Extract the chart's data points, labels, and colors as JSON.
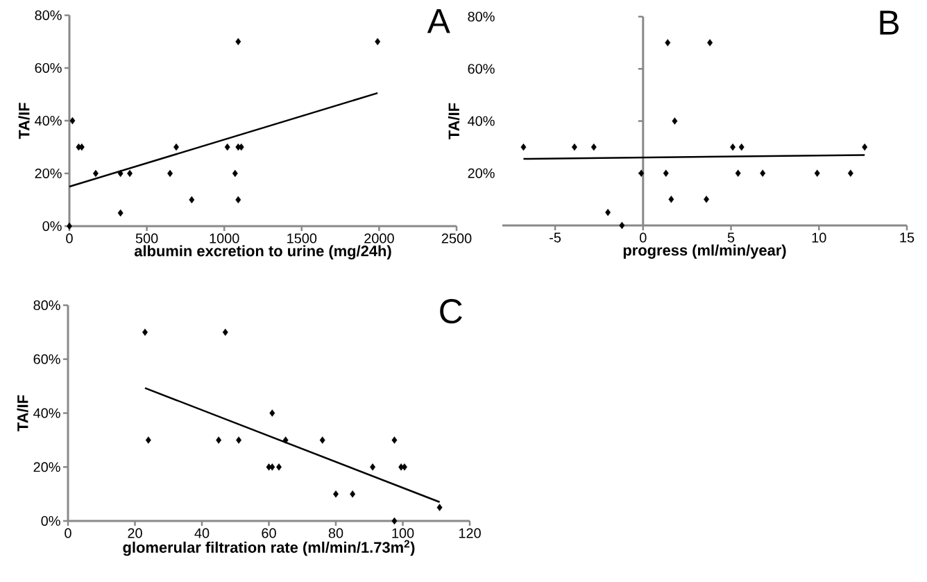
{
  "chart_data": [
    {
      "type": "scatter",
      "title": "A",
      "xlabel": "albumin excretion to urine (mg/24h)",
      "ylabel": "TA/IF",
      "marker": "diamond",
      "xlim": [
        0,
        2500
      ],
      "xticks": [
        0,
        500,
        1000,
        1500,
        2000,
        2500
      ],
      "ylim": [
        0,
        80
      ],
      "yticks": [
        {
          "value": 0,
          "label": "0%"
        },
        {
          "value": 20,
          "label": "20%"
        },
        {
          "value": 40,
          "label": "40%"
        },
        {
          "value": 60,
          "label": "60%"
        },
        {
          "value": 80,
          "label": "80%"
        }
      ],
      "series": [
        {
          "type": "scatter",
          "color": "#000000",
          "x": [
            20,
            0,
            60,
            80,
            170,
            330,
            330,
            390,
            650,
            690,
            790,
            1020,
            1070,
            1090,
            1090,
            1090,
            1110,
            1990
          ],
          "values": [
            40,
            0,
            30,
            30,
            20,
            20,
            5,
            20,
            20,
            30,
            10,
            30,
            20,
            10,
            70,
            30,
            30,
            70
          ]
        },
        {
          "type": "line",
          "color": "#000000",
          "marker": "none",
          "x": [
            0,
            1990
          ],
          "values": [
            15,
            50.5
          ]
        }
      ]
    },
    {
      "type": "scatter",
      "title": "B",
      "xlabel": "progress (ml/min/year)",
      "ylabel": "TA/IF",
      "marker": "diamond",
      "xlim": [
        -8,
        15
      ],
      "xticks": [
        -5,
        0,
        5,
        10,
        15
      ],
      "ylim": [
        0,
        80
      ],
      "yticks": [
        {
          "value": 0,
          "label": null
        },
        {
          "value": 20,
          "label": "20%"
        },
        {
          "value": 40,
          "label": "40%"
        },
        {
          "value": 60,
          "label": "60%"
        },
        {
          "value": 80,
          "label": "80%"
        }
      ],
      "series": [
        {
          "type": "scatter",
          "color": "#000000",
          "x": [
            -6.8,
            -3.9,
            -2.8,
            -0.1,
            1.3,
            1.4,
            1.6,
            1.8,
            -2,
            -1.2,
            3.6,
            3.8,
            5.1,
            5.6,
            5.4,
            6.8,
            9.9,
            11.8,
            12.6
          ],
          "values": [
            30,
            30,
            30,
            20,
            20,
            70,
            10,
            40,
            5,
            0,
            10,
            70,
            30,
            30,
            20,
            20,
            20,
            20,
            30
          ]
        },
        {
          "type": "line",
          "color": "#000000",
          "marker": "none",
          "x": [
            -6.8,
            12.6
          ],
          "values": [
            25.5,
            27
          ]
        }
      ]
    },
    {
      "type": "scatter",
      "title": "C",
      "xlabel": "glomerular filtration rate (ml/min/1.73m$^{2}$)",
      "ylabel": "TA/IF",
      "marker": "diamond",
      "xlim": [
        0,
        120
      ],
      "xticks": [
        0,
        20,
        40,
        60,
        80,
        100,
        120
      ],
      "ylim": [
        0,
        80
      ],
      "yticks": [
        {
          "value": 0,
          "label": "0%"
        },
        {
          "value": 20,
          "label": "20%"
        },
        {
          "value": 40,
          "label": "40%"
        },
        {
          "value": 60,
          "label": "60%"
        },
        {
          "value": 80,
          "label": "80%"
        }
      ],
      "series": [
        {
          "type": "scatter",
          "color": "#000000",
          "x": [
            23,
            24,
            45,
            47,
            51,
            60,
            61,
            61,
            63,
            65,
            76,
            80,
            85,
            91,
            97.5,
            97.5,
            99.5,
            100.5,
            111
          ],
          "values": [
            70,
            30,
            30,
            70,
            30,
            20,
            20,
            40,
            20,
            30,
            30,
            10,
            10,
            20,
            30,
            0,
            20,
            20,
            5
          ]
        },
        {
          "type": "line",
          "color": "#000000",
          "marker": "none",
          "x": [
            23,
            111
          ],
          "values": [
            49.3,
            7
          ]
        }
      ]
    }
  ]
}
